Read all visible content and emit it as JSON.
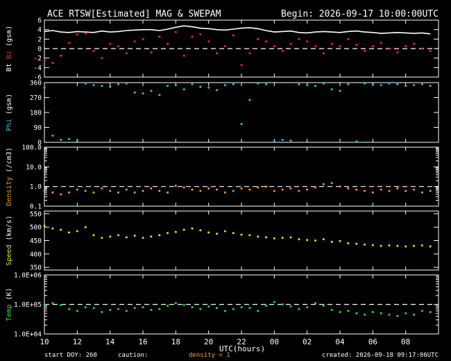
{
  "header": {
    "title": "ACE RTSW[Estimated] MAG & SWEPAM",
    "begin": "Begin: 2026-09-17 10:00:00UTC"
  },
  "footer": {
    "start_doy": "start DOY: 260",
    "caution": "caution:",
    "density_note": "density < 1",
    "created": "created: 2026-09-18 09:17:06UTC"
  },
  "colors": {
    "bt": "#ffffff",
    "bz": "#ff2020",
    "phi": "#20c8e6",
    "density": "#ff9a1a",
    "speed": "#e6e61a",
    "temp": "#20e620",
    "axes": "#ffffff"
  },
  "chart_data": {
    "type": "scatter",
    "x_axis": {
      "label": "UTC(hours)",
      "range_hours": [
        0,
        24
      ],
      "ticks": [
        {
          "h": 0,
          "label": "10"
        },
        {
          "h": 2,
          "label": "12"
        },
        {
          "h": 4,
          "label": "14"
        },
        {
          "h": 6,
          "label": "16"
        },
        {
          "h": 8,
          "label": "18"
        },
        {
          "h": 10,
          "label": "20"
        },
        {
          "h": 12,
          "label": "22"
        },
        {
          "h": 14,
          "label": "00"
        },
        {
          "h": 16,
          "label": "02"
        },
        {
          "h": 18,
          "label": "04"
        },
        {
          "h": 20,
          "label": "06"
        },
        {
          "h": 22,
          "label": "08"
        }
      ]
    },
    "panels": [
      {
        "key": "mag",
        "ylabel": [
          {
            "text": "Bt",
            "color": "#ffffff"
          },
          {
            "text": " Bz",
            "color": "#ff2020"
          },
          {
            "text": " (gsm)",
            "color": "#ffffff"
          }
        ],
        "scale": "linear",
        "ylim": [
          -6,
          6
        ],
        "ticks": [
          {
            "v": 6,
            "l": "6"
          },
          {
            "v": 4,
            "l": "4"
          },
          {
            "v": 2,
            "l": "2"
          },
          {
            "v": 0,
            "l": "0"
          },
          {
            "v": -2,
            "l": "-2"
          },
          {
            "v": -4,
            "l": "-4"
          },
          {
            "v": -6,
            "l": "-6"
          }
        ],
        "dashed": 0,
        "series": [
          {
            "name": "Bt",
            "color": "#ffffff",
            "style": "line",
            "x": [
              0,
              0.5,
              1,
              1.5,
              2,
              2.5,
              3,
              3.5,
              4,
              4.5,
              5,
              5.5,
              6,
              6.5,
              7,
              7.5,
              8,
              8.5,
              9,
              9.5,
              10,
              10.5,
              11,
              11.5,
              12,
              12.5,
              13,
              13.5,
              14,
              14.5,
              15,
              15.5,
              16,
              16.5,
              17,
              17.5,
              18,
              18.5,
              19,
              19.5,
              20,
              20.5,
              21,
              21.5,
              22,
              22.5,
              23,
              23.5
            ],
            "y": [
              3.6,
              3.8,
              3.5,
              3.4,
              3.6,
              3.5,
              3.4,
              3.7,
              3.5,
              3.6,
              3.8,
              3.9,
              4.0,
              4.0,
              3.8,
              4.1,
              4.5,
              4.8,
              4.6,
              4.3,
              4.2,
              4.0,
              3.9,
              4.1,
              4.3,
              4.4,
              4.2,
              3.8,
              3.5,
              3.6,
              3.7,
              3.4,
              3.3,
              3.5,
              3.6,
              3.5,
              3.4,
              3.6,
              3.7,
              3.5,
              3.4,
              3.2,
              3.3,
              3.4,
              3.3,
              3.2,
              3.3,
              3.1
            ]
          },
          {
            "name": "Bz",
            "color": "#ff2020",
            "style": "dots",
            "x": [
              0,
              0.5,
              1,
              1.5,
              2,
              2.5,
              3,
              3.5,
              4,
              4.5,
              5,
              5.5,
              6,
              6.5,
              7,
              7.5,
              8,
              8.5,
              9,
              9.5,
              10,
              10.5,
              11,
              11.5,
              12,
              12.5,
              13,
              13.5,
              14,
              14.5,
              15,
              15.5,
              16,
              16.5,
              17,
              17.5,
              18,
              18.5,
              19,
              19.5,
              20,
              20.5,
              21,
              21.5,
              22,
              22.5,
              23,
              23.5
            ],
            "y": [
              -2.5,
              -3.0,
              -1.5,
              1.2,
              3.0,
              3.2,
              -0.5,
              -2.0,
              1.0,
              0.5,
              -1.0,
              1.5,
              2.0,
              -0.8,
              2.5,
              1.0,
              3.5,
              -1.5,
              2.5,
              3.0,
              1.5,
              -1.0,
              0.5,
              2.8,
              -3.5,
              -1.0,
              2.0,
              1.5,
              0.5,
              -0.5,
              1.0,
              2.0,
              1.5,
              0.5,
              -1.0,
              1.0,
              0.5,
              2.0,
              0.8,
              -0.5,
              0.5,
              1.2,
              0.0,
              -0.8,
              0.5,
              1.0,
              0.0,
              -0.5
            ]
          }
        ]
      },
      {
        "key": "phi",
        "ylabel": [
          {
            "text": "Phi",
            "color": "#20c8e6"
          },
          {
            "text": " (gsm)",
            "color": "#ffffff"
          }
        ],
        "scale": "linear",
        "ylim": [
          0,
          360
        ],
        "ticks": [
          {
            "v": 360,
            "l": "360"
          },
          {
            "v": 270,
            "l": "270"
          },
          {
            "v": 180,
            "l": "180"
          },
          {
            "v": 90,
            "l": "90"
          },
          {
            "v": 0,
            "l": "0"
          }
        ],
        "series": [
          {
            "name": "Phi",
            "color": "#20c8e6",
            "style": "dots",
            "x": [
              0,
              0.5,
              1,
              1.5,
              2,
              2.5,
              3,
              3.5,
              4,
              4.5,
              5,
              5.5,
              6,
              6.5,
              7,
              7.5,
              8,
              8.5,
              9,
              9.5,
              10,
              10.5,
              11,
              11.5,
              12,
              12.5,
              13,
              13.5,
              14,
              14.5,
              15,
              15.5,
              16,
              16.5,
              17,
              17.5,
              18,
              18.5,
              19,
              19.5,
              20,
              20.5,
              21,
              21.5,
              22,
              22.5,
              23,
              23.5
            ],
            "y": [
              330,
              40,
              15,
              20,
              10,
              355,
              345,
              340,
              335,
              350,
              355,
              300,
              295,
              310,
              285,
              340,
              345,
              320,
              350,
              335,
              330,
              315,
              345,
              350,
              110,
              255,
              355,
              350,
              5,
              15,
              10,
              350,
              345,
              340,
              355,
              320,
              310,
              350,
              5,
              355,
              350,
              345,
              355,
              350,
              340,
              345,
              350,
              340
            ]
          }
        ]
      },
      {
        "key": "density",
        "ylabel": [
          {
            "text": "Density",
            "color": "#ff9a1a"
          },
          {
            "text": " (/cm3)",
            "color": "#ffffff"
          }
        ],
        "scale": "log",
        "ylim": [
          0.1,
          100
        ],
        "ticks": [
          {
            "v": 100,
            "l": "100.0"
          },
          {
            "v": 10,
            "l": "10.0"
          },
          {
            "v": 1,
            "l": "1.0"
          },
          {
            "v": 0.1,
            "l": "0.1"
          }
        ],
        "dashed": 1,
        "series": [
          {
            "name": "Density",
            "color": "#ff9a1a",
            "style": "dots",
            "x": [
              0,
              0.5,
              1,
              1.5,
              2,
              2.5,
              3,
              3.5,
              4,
              4.5,
              5,
              5.5,
              6,
              6.5,
              7,
              7.5,
              8,
              8.5,
              9,
              9.5,
              10,
              10.5,
              11,
              11.5,
              12,
              12.5,
              13,
              13.5,
              14,
              14.5,
              15,
              15.5,
              16,
              16.5,
              17,
              17.5,
              18,
              18.5,
              19,
              19.5,
              20,
              20.5,
              21,
              21.5,
              22,
              22.5,
              23,
              23.5
            ],
            "y": [
              0.6,
              0.5,
              0.4,
              0.5,
              0.7,
              0.6,
              0.5,
              0.8,
              0.6,
              0.5,
              0.7,
              0.5,
              0.6,
              0.8,
              0.6,
              0.5,
              1.1,
              0.9,
              0.7,
              0.6,
              0.8,
              0.7,
              0.5,
              0.6,
              0.8,
              0.7,
              0.9,
              1.0,
              0.6,
              0.7,
              0.8,
              0.6,
              0.7,
              0.9,
              1.3,
              1.5,
              1.0,
              0.8,
              0.7,
              0.6,
              0.5,
              0.7,
              0.6,
              0.8,
              0.6,
              0.7,
              0.5,
              0.6
            ]
          }
        ]
      },
      {
        "key": "speed",
        "ylabel": [
          {
            "text": "Speed",
            "color": "#e6e61a"
          },
          {
            "text": " (km/s)",
            "color": "#ffffff"
          }
        ],
        "scale": "linear",
        "ylim": [
          340,
          560
        ],
        "ticks": [
          {
            "v": 550,
            "l": "550"
          },
          {
            "v": 500,
            "l": "500"
          },
          {
            "v": 450,
            "l": "450"
          },
          {
            "v": 400,
            "l": "400"
          },
          {
            "v": 350,
            "l": "350"
          }
        ],
        "series": [
          {
            "name": "Speed",
            "color": "#e6e61a",
            "style": "dots",
            "x": [
              0,
              0.5,
              1,
              1.5,
              2,
              2.5,
              3,
              3.5,
              4,
              4.5,
              5,
              5.5,
              6,
              6.5,
              7,
              7.5,
              8,
              8.5,
              9,
              9.5,
              10,
              10.5,
              11,
              11.5,
              12,
              12.5,
              13,
              13.5,
              14,
              14.5,
              15,
              15.5,
              16,
              16.5,
              17,
              17.5,
              18,
              18.5,
              19,
              19.5,
              20,
              20.5,
              21,
              21.5,
              22,
              22.5,
              23,
              23.5
            ],
            "y": [
              505,
              495,
              490,
              480,
              485,
              500,
              470,
              460,
              465,
              470,
              462,
              468,
              460,
              465,
              470,
              478,
              482,
              490,
              495,
              488,
              480,
              475,
              485,
              478,
              472,
              470,
              465,
              462,
              458,
              460,
              462,
              455,
              452,
              450,
              455,
              445,
              448,
              440,
              438,
              435,
              433,
              430,
              432,
              430,
              428,
              430,
              432,
              428
            ]
          }
        ]
      },
      {
        "key": "temp",
        "ylabel": [
          {
            "text": "Temp",
            "color": "#20e620"
          },
          {
            "text": " (K)",
            "color": "#ffffff"
          }
        ],
        "scale": "log",
        "ylim": [
          10000,
          1000000
        ],
        "ticks": [
          {
            "v": 1000000,
            "l": "1.0E+06"
          },
          {
            "v": 100000,
            "l": "1.0E+05"
          },
          {
            "v": 10000,
            "l": "1.0E+04"
          }
        ],
        "dashed": 100000,
        "series": [
          {
            "name": "Temp",
            "color": "#20e620",
            "style": "dots",
            "x": [
              0,
              0.5,
              1,
              1.5,
              2,
              2.5,
              3,
              3.5,
              4,
              4.5,
              5,
              5.5,
              6,
              6.5,
              7,
              7.5,
              8,
              8.5,
              9,
              9.5,
              10,
              10.5,
              11,
              11.5,
              12,
              12.5,
              13,
              13.5,
              14,
              14.5,
              15,
              15.5,
              16,
              16.5,
              17,
              17.5,
              18,
              18.5,
              19,
              19.5,
              20,
              20.5,
              21,
              21.5,
              22,
              22.5,
              23,
              23.5
            ],
            "y": [
              100000,
              110000,
              95000,
              70000,
              60000,
              80000,
              75000,
              55000,
              65000,
              70000,
              60000,
              75000,
              80000,
              65000,
              70000,
              90000,
              110000,
              95000,
              80000,
              70000,
              85000,
              75000,
              60000,
              70000,
              80000,
              75000,
              60000,
              90000,
              120000,
              100000,
              85000,
              70000,
              80000,
              110000,
              90000,
              65000,
              55000,
              60000,
              50000,
              45000,
              55000,
              50000,
              45000,
              40000,
              50000,
              45000,
              60000,
              55000
            ]
          }
        ]
      }
    ]
  }
}
